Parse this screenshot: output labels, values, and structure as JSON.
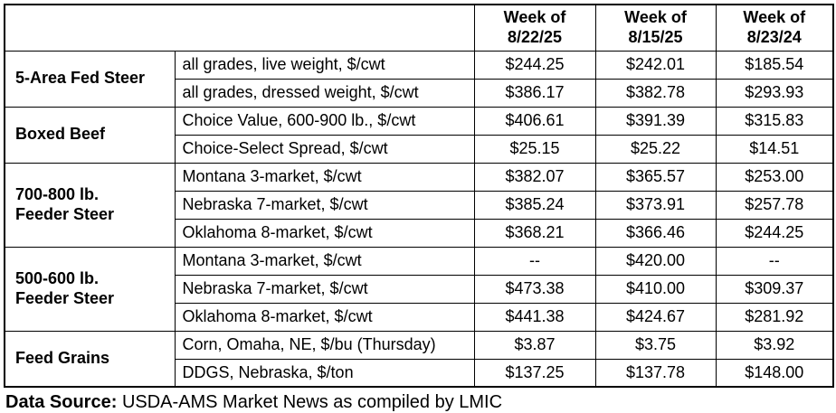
{
  "colors": {
    "background": "#ffffff",
    "border": "#000000",
    "text": "#000000"
  },
  "table": {
    "corner_label": "",
    "week_headers": [
      "Week of\n8/22/25",
      "Week of\n8/15/25",
      "Week of\n8/23/24"
    ],
    "groups": [
      {
        "label": "5-Area Fed Steer",
        "rows": [
          {
            "description": "all grades, live weight, $/cwt",
            "values": [
              "$244.25",
              "$242.01",
              "$185.54"
            ]
          },
          {
            "description": "all grades, dressed weight, $/cwt",
            "values": [
              "$386.17",
              "$382.78",
              "$293.93"
            ]
          }
        ]
      },
      {
        "label": "Boxed Beef",
        "rows": [
          {
            "description": "Choice Value, 600-900 lb., $/cwt",
            "values": [
              "$406.61",
              "$391.39",
              "$315.83"
            ]
          },
          {
            "description": "Choice-Select Spread, $/cwt",
            "values": [
              "$25.15",
              "$25.22",
              "$14.51"
            ]
          }
        ]
      },
      {
        "label": "700-800 lb.\nFeeder Steer",
        "rows": [
          {
            "description": "Montana 3-market, $/cwt",
            "values": [
              "$382.07",
              "$365.57",
              "$253.00"
            ]
          },
          {
            "description": "Nebraska 7-market, $/cwt",
            "values": [
              "$385.24",
              "$373.91",
              "$257.78"
            ]
          },
          {
            "description": "Oklahoma 8-market, $/cwt",
            "values": [
              "$368.21",
              "$366.46",
              "$244.25"
            ]
          }
        ]
      },
      {
        "label": "500-600 lb.\nFeeder Steer",
        "rows": [
          {
            "description": "Montana 3-market, $/cwt",
            "values": [
              "--",
              "$420.00",
              "--"
            ]
          },
          {
            "description": "Nebraska 7-market, $/cwt",
            "values": [
              "$473.38",
              "$410.00",
              "$309.37"
            ]
          },
          {
            "description": "Oklahoma 8-market, $/cwt",
            "values": [
              "$441.38",
              "$424.67",
              "$281.92"
            ]
          }
        ]
      },
      {
        "label": "Feed Grains",
        "rows": [
          {
            "description": "Corn, Omaha, NE, $/bu (Thursday)",
            "values": [
              "$3.87",
              "$3.75",
              "$3.92"
            ]
          },
          {
            "description": "DDGS, Nebraska, $/ton",
            "values": [
              "$137.25",
              "$137.78",
              "$148.00"
            ]
          }
        ]
      }
    ]
  },
  "footer": {
    "label": "Data Source:",
    "text": "USDA-AMS Market News as compiled by LMIC"
  }
}
